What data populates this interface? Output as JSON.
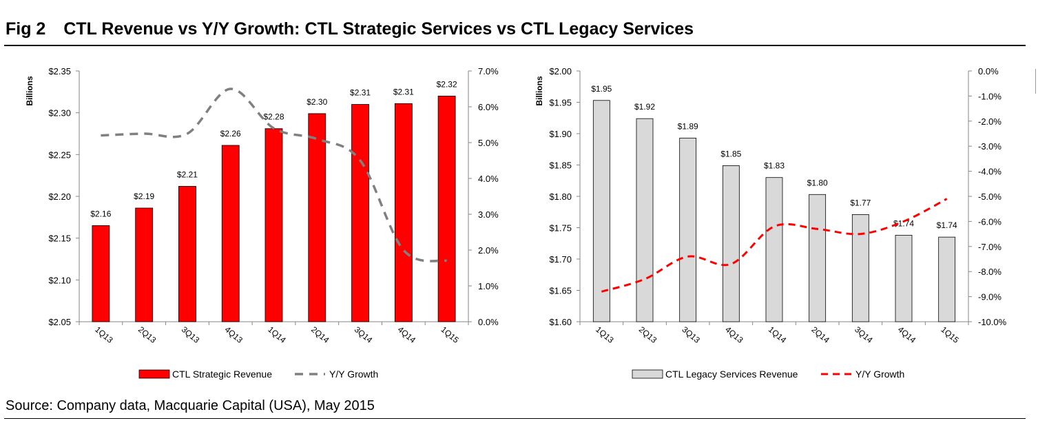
{
  "figure": {
    "label": "Fig 2",
    "title": "CTL Revenue vs Y/Y Growth: CTL Strategic Services vs CTL Legacy Services",
    "source": "Source: Company data, Macquarie Capital (USA), May 2015"
  },
  "chart_data": [
    {
      "type": "bar",
      "name": "strategic",
      "categories": [
        "1Q13",
        "2Q13",
        "3Q13",
        "4Q13",
        "1Q14",
        "2Q14",
        "3Q14",
        "4Q14",
        "1Q15"
      ],
      "values": [
        2.165,
        2.186,
        2.212,
        2.261,
        2.281,
        2.299,
        2.31,
        2.311,
        2.32
      ],
      "value_labels": [
        "$2.16",
        "$2.19",
        "$2.21",
        "$2.26",
        "$2.28",
        "$2.30",
        "$2.31",
        "$2.31",
        "$2.32"
      ],
      "ylabel": "Billions",
      "ylim": [
        2.05,
        2.35
      ],
      "y_ticks": [
        2.05,
        2.1,
        2.15,
        2.2,
        2.25,
        2.3,
        2.35
      ],
      "y_tick_labels": [
        "$2.05",
        "$2.10",
        "$2.15",
        "$2.20",
        "$2.25",
        "$2.30",
        "$2.35"
      ],
      "y2lim": [
        0.0,
        7.0
      ],
      "y2_ticks": [
        0,
        1,
        2,
        3,
        4,
        5,
        6,
        7
      ],
      "y2_tick_labels": [
        "0.0%",
        "1.0%",
        "2.0%",
        "3.0%",
        "4.0%",
        "5.0%",
        "6.0%",
        "7.0%"
      ],
      "bar_color": "#ff0000",
      "line_color": "#808080",
      "growth": [
        5.2,
        5.25,
        5.25,
        6.5,
        5.4,
        5.1,
        4.5,
        2.0,
        1.7
      ],
      "legend": {
        "bar_label": "CTL Strategic Revenue",
        "line_label": "Y/Y Growth",
        "position": "bottom"
      }
    },
    {
      "type": "bar",
      "name": "legacy",
      "categories": [
        "1Q13",
        "2Q13",
        "3Q13",
        "4Q13",
        "1Q14",
        "2Q14",
        "3Q14",
        "4Q14",
        "1Q15"
      ],
      "values": [
        1.953,
        1.924,
        1.893,
        1.849,
        1.83,
        1.803,
        1.771,
        1.738,
        1.735
      ],
      "value_labels": [
        "$1.95",
        "$1.92",
        "$1.89",
        "$1.85",
        "$1.83",
        "$1.80",
        "$1.77",
        "$1.74",
        "$1.74"
      ],
      "ylabel": "Billions",
      "ylim": [
        1.6,
        2.0
      ],
      "y_ticks": [
        1.6,
        1.65,
        1.7,
        1.75,
        1.8,
        1.85,
        1.9,
        1.95,
        2.0
      ],
      "y_tick_labels": [
        "$1.60",
        "$1.65",
        "$1.70",
        "$1.75",
        "$1.80",
        "$1.85",
        "$1.90",
        "$1.95",
        "$2.00"
      ],
      "y2lim": [
        -10.0,
        0.0
      ],
      "y2_ticks": [
        -10,
        -9,
        -8,
        -7,
        -6,
        -5,
        -4,
        -3,
        -2,
        -1,
        0
      ],
      "y2_tick_labels": [
        "-10.0%",
        "-9.0%",
        "-8.0%",
        "-7.0%",
        "-6.0%",
        "-5.0%",
        "-4.0%",
        "-3.0%",
        "-2.0%",
        "-1.0%",
        "0.0%"
      ],
      "bar_color": "#d9d9d9",
      "line_color": "#ff0000",
      "growth": [
        -8.8,
        -8.3,
        -7.4,
        -7.7,
        -6.2,
        -6.3,
        -6.5,
        -6.0,
        -5.1
      ],
      "legend": {
        "bar_label": "CTL Legacy Services Revenue",
        "line_label": "Y/Y Growth",
        "position": "bottom"
      }
    }
  ]
}
